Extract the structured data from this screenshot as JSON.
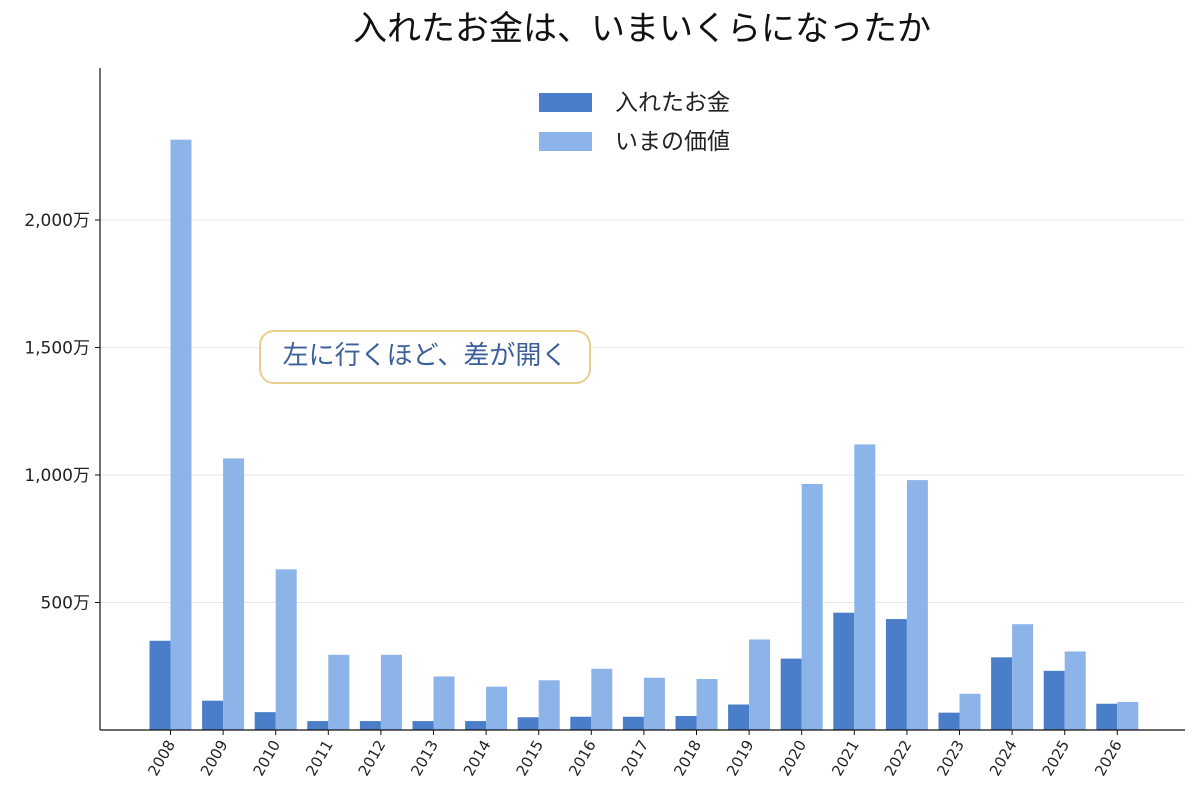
{
  "chart_data": {
    "type": "bar",
    "title": "入れたお金は、いまいくらになったか",
    "xlabel": "",
    "ylabel": "",
    "categories": [
      "2008",
      "2009",
      "2010",
      "2011",
      "2012",
      "2013",
      "2014",
      "2015",
      "2016",
      "2017",
      "2018",
      "2019",
      "2020",
      "2021",
      "2022",
      "2023",
      "2024",
      "2025",
      "2026"
    ],
    "series": [
      {
        "name": "入れたお金",
        "color": "#4a7ec9",
        "values": [
          350,
          115,
          70,
          35,
          35,
          35,
          35,
          50,
          52,
          52,
          55,
          100,
          280,
          460,
          435,
          68,
          285,
          232,
          103
        ]
      },
      {
        "name": "いまの価値",
        "color": "#8db4e8",
        "values": [
          2315,
          1065,
          630,
          295,
          295,
          210,
          170,
          195,
          240,
          205,
          200,
          355,
          965,
          1120,
          980,
          142,
          415,
          308,
          110
        ]
      }
    ],
    "ylim": [
      0,
      2600
    ],
    "yticks": [
      500,
      1000,
      1500,
      2000
    ],
    "ytick_labels": [
      "500万",
      "1,000万",
      "1,500万",
      "2,000万"
    ],
    "grid": "horizontal",
    "legend_position": "top-center",
    "annotation": "左に行くほど、差が開く"
  }
}
